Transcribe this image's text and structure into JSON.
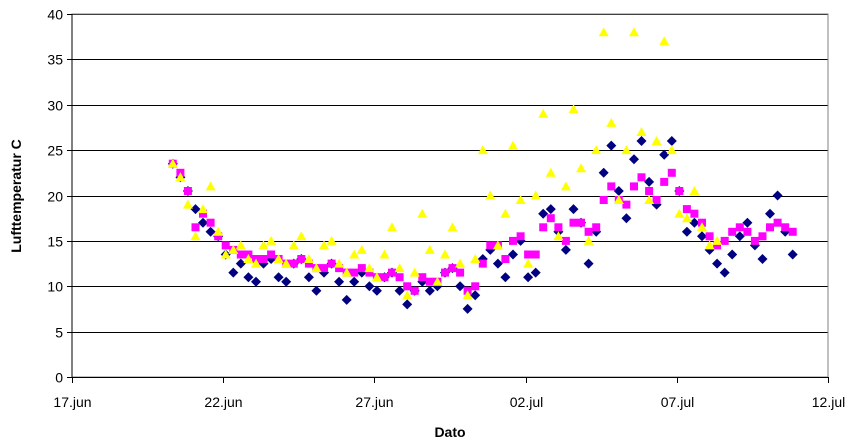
{
  "chart_data": {
    "type": "scatter",
    "title": "",
    "xlabel": "Dato",
    "ylabel": "Lufttemperatur C",
    "x_scale": "date",
    "xlim": [
      "2013-06-17",
      "2013-07-12"
    ],
    "ylim": [
      0,
      40
    ],
    "x_ticks": [
      {
        "date": "2013-06-17",
        "label": "17.jun"
      },
      {
        "date": "2013-06-22",
        "label": "22.jun"
      },
      {
        "date": "2013-06-27",
        "label": "27.jun"
      },
      {
        "date": "2013-07-02",
        "label": "02.jul"
      },
      {
        "date": "2013-07-07",
        "label": "07.jul"
      },
      {
        "date": "2013-07-12",
        "label": "12.jul"
      }
    ],
    "y_ticks": [
      "0",
      "5",
      "10",
      "15",
      "20",
      "25",
      "30",
      "35",
      "40"
    ],
    "grid": "horizontal",
    "legend": "none",
    "series": [
      {
        "color": "#000080",
        "marker": "diamond",
        "points": [
          [
            "2013-06-20 08:00",
            23.5
          ],
          [
            "2013-06-20 14:00",
            22.0
          ],
          [
            "2013-06-20 20:00",
            20.5
          ],
          [
            "2013-06-21 02:00",
            18.5
          ],
          [
            "2013-06-21 08:00",
            17.0
          ],
          [
            "2013-06-21 14:00",
            16.0
          ],
          [
            "2013-06-21 20:00",
            15.5
          ],
          [
            "2013-06-22 02:00",
            13.5
          ],
          [
            "2013-06-22 08:00",
            11.5
          ],
          [
            "2013-06-22 14:00",
            12.5
          ],
          [
            "2013-06-22 20:00",
            11.0
          ],
          [
            "2013-06-23 02:00",
            10.5
          ],
          [
            "2013-06-23 08:00",
            12.5
          ],
          [
            "2013-06-23 14:00",
            13.0
          ],
          [
            "2013-06-23 20:00",
            11.0
          ],
          [
            "2013-06-24 02:00",
            10.5
          ],
          [
            "2013-06-24 08:00",
            12.5
          ],
          [
            "2013-06-24 14:00",
            13.0
          ],
          [
            "2013-06-24 20:00",
            11.0
          ],
          [
            "2013-06-25 02:00",
            9.5
          ],
          [
            "2013-06-25 08:00",
            11.5
          ],
          [
            "2013-06-25 14:00",
            12.5
          ],
          [
            "2013-06-25 20:00",
            10.5
          ],
          [
            "2013-06-26 02:00",
            8.5
          ],
          [
            "2013-06-26 08:00",
            10.5
          ],
          [
            "2013-06-26 14:00",
            11.5
          ],
          [
            "2013-06-26 20:00",
            10.0
          ],
          [
            "2013-06-27 02:00",
            9.5
          ],
          [
            "2013-06-27 08:00",
            11.0
          ],
          [
            "2013-06-27 14:00",
            11.5
          ],
          [
            "2013-06-27 20:00",
            9.5
          ],
          [
            "2013-06-28 02:00",
            8.0
          ],
          [
            "2013-06-28 08:00",
            9.5
          ],
          [
            "2013-06-28 14:00",
            10.5
          ],
          [
            "2013-06-28 20:00",
            9.5
          ],
          [
            "2013-06-29 02:00",
            10.0
          ],
          [
            "2013-06-29 08:00",
            11.5
          ],
          [
            "2013-06-29 14:00",
            12.0
          ],
          [
            "2013-06-29 20:00",
            10.0
          ],
          [
            "2013-06-30 02:00",
            7.5
          ],
          [
            "2013-06-30 08:00",
            9.0
          ],
          [
            "2013-06-30 14:00",
            13.0
          ],
          [
            "2013-06-30 20:00",
            14.0
          ],
          [
            "2013-07-01 02:00",
            12.5
          ],
          [
            "2013-07-01 08:00",
            11.0
          ],
          [
            "2013-07-01 14:00",
            13.5
          ],
          [
            "2013-07-01 20:00",
            15.0
          ],
          [
            "2013-07-02 02:00",
            11.0
          ],
          [
            "2013-07-02 08:00",
            11.5
          ],
          [
            "2013-07-02 14:00",
            18.0
          ],
          [
            "2013-07-02 20:00",
            18.5
          ],
          [
            "2013-07-03 02:00",
            16.0
          ],
          [
            "2013-07-03 08:00",
            14.0
          ],
          [
            "2013-07-03 14:00",
            18.5
          ],
          [
            "2013-07-03 20:00",
            17.0
          ],
          [
            "2013-07-04 02:00",
            12.5
          ],
          [
            "2013-07-04 08:00",
            16.0
          ],
          [
            "2013-07-04 14:00",
            22.5
          ],
          [
            "2013-07-04 20:00",
            25.5
          ],
          [
            "2013-07-05 02:00",
            20.5
          ],
          [
            "2013-07-05 08:00",
            17.5
          ],
          [
            "2013-07-05 14:00",
            24.0
          ],
          [
            "2013-07-05 20:00",
            26.0
          ],
          [
            "2013-07-06 02:00",
            21.5
          ],
          [
            "2013-07-06 08:00",
            19.0
          ],
          [
            "2013-07-06 14:00",
            24.5
          ],
          [
            "2013-07-06 20:00",
            26.0
          ],
          [
            "2013-07-07 02:00",
            20.5
          ],
          [
            "2013-07-07 08:00",
            16.0
          ],
          [
            "2013-07-07 14:00",
            17.0
          ],
          [
            "2013-07-07 20:00",
            15.5
          ],
          [
            "2013-07-08 02:00",
            14.0
          ],
          [
            "2013-07-08 08:00",
            12.5
          ],
          [
            "2013-07-08 14:00",
            11.5
          ],
          [
            "2013-07-08 20:00",
            13.5
          ],
          [
            "2013-07-09 02:00",
            15.5
          ],
          [
            "2013-07-09 08:00",
            17.0
          ],
          [
            "2013-07-09 14:00",
            14.5
          ],
          [
            "2013-07-09 20:00",
            13.0
          ],
          [
            "2013-07-10 02:00",
            18.0
          ],
          [
            "2013-07-10 08:00",
            20.0
          ],
          [
            "2013-07-10 14:00",
            16.0
          ],
          [
            "2013-07-10 20:00",
            13.5
          ]
        ]
      },
      {
        "color": "#FF00FF",
        "marker": "square",
        "points": [
          [
            "2013-06-20 08:00",
            23.5
          ],
          [
            "2013-06-20 14:00",
            22.5
          ],
          [
            "2013-06-20 20:00",
            20.5
          ],
          [
            "2013-06-21 02:00",
            16.5
          ],
          [
            "2013-06-21 08:00",
            18.0
          ],
          [
            "2013-06-21 14:00",
            17.0
          ],
          [
            "2013-06-21 20:00",
            15.5
          ],
          [
            "2013-06-22 02:00",
            14.5
          ],
          [
            "2013-06-22 08:00",
            14.0
          ],
          [
            "2013-06-22 14:00",
            13.5
          ],
          [
            "2013-06-22 20:00",
            13.5
          ],
          [
            "2013-06-23 02:00",
            13.0
          ],
          [
            "2013-06-23 08:00",
            13.0
          ],
          [
            "2013-06-23 14:00",
            13.5
          ],
          [
            "2013-06-23 20:00",
            13.0
          ],
          [
            "2013-06-24 02:00",
            12.5
          ],
          [
            "2013-06-24 08:00",
            12.5
          ],
          [
            "2013-06-24 14:00",
            13.0
          ],
          [
            "2013-06-24 20:00",
            12.5
          ],
          [
            "2013-06-25 02:00",
            12.0
          ],
          [
            "2013-06-25 08:00",
            12.0
          ],
          [
            "2013-06-25 14:00",
            12.5
          ],
          [
            "2013-06-25 20:00",
            12.0
          ],
          [
            "2013-06-26 02:00",
            11.5
          ],
          [
            "2013-06-26 08:00",
            11.5
          ],
          [
            "2013-06-26 14:00",
            12.0
          ],
          [
            "2013-06-26 20:00",
            11.5
          ],
          [
            "2013-06-27 02:00",
            11.0
          ],
          [
            "2013-06-27 08:00",
            11.0
          ],
          [
            "2013-06-27 14:00",
            11.5
          ],
          [
            "2013-06-27 20:00",
            11.0
          ],
          [
            "2013-06-28 02:00",
            10.0
          ],
          [
            "2013-06-28 08:00",
            9.5
          ],
          [
            "2013-06-28 14:00",
            11.0
          ],
          [
            "2013-06-28 20:00",
            10.5
          ],
          [
            "2013-06-29 02:00",
            10.5
          ],
          [
            "2013-06-29 08:00",
            11.5
          ],
          [
            "2013-06-29 14:00",
            12.0
          ],
          [
            "2013-06-29 20:00",
            11.5
          ],
          [
            "2013-06-30 02:00",
            9.5
          ],
          [
            "2013-06-30 08:00",
            10.0
          ],
          [
            "2013-06-30 14:00",
            12.5
          ],
          [
            "2013-06-30 20:00",
            14.5
          ],
          [
            "2013-07-01 02:00",
            14.5
          ],
          [
            "2013-07-01 08:00",
            13.0
          ],
          [
            "2013-07-01 14:00",
            15.0
          ],
          [
            "2013-07-01 20:00",
            15.5
          ],
          [
            "2013-07-02 02:00",
            13.5
          ],
          [
            "2013-07-02 08:00",
            13.5
          ],
          [
            "2013-07-02 14:00",
            16.5
          ],
          [
            "2013-07-02 20:00",
            17.5
          ],
          [
            "2013-07-03 02:00",
            16.5
          ],
          [
            "2013-07-03 08:00",
            15.0
          ],
          [
            "2013-07-03 14:00",
            17.0
          ],
          [
            "2013-07-03 20:00",
            17.0
          ],
          [
            "2013-07-04 02:00",
            16.0
          ],
          [
            "2013-07-04 08:00",
            16.5
          ],
          [
            "2013-07-04 14:00",
            19.5
          ],
          [
            "2013-07-04 20:00",
            21.0
          ],
          [
            "2013-07-05 02:00",
            19.5
          ],
          [
            "2013-07-05 08:00",
            19.0
          ],
          [
            "2013-07-05 14:00",
            21.0
          ],
          [
            "2013-07-05 20:00",
            22.0
          ],
          [
            "2013-07-06 02:00",
            20.5
          ],
          [
            "2013-07-06 08:00",
            19.5
          ],
          [
            "2013-07-06 14:00",
            21.5
          ],
          [
            "2013-07-06 20:00",
            22.5
          ],
          [
            "2013-07-07 02:00",
            20.5
          ],
          [
            "2013-07-07 08:00",
            18.5
          ],
          [
            "2013-07-07 14:00",
            18.0
          ],
          [
            "2013-07-07 20:00",
            17.0
          ],
          [
            "2013-07-08 02:00",
            15.5
          ],
          [
            "2013-07-08 08:00",
            14.5
          ],
          [
            "2013-07-08 14:00",
            15.0
          ],
          [
            "2013-07-08 20:00",
            16.0
          ],
          [
            "2013-07-09 02:00",
            16.5
          ],
          [
            "2013-07-09 08:00",
            16.0
          ],
          [
            "2013-07-09 14:00",
            15.0
          ],
          [
            "2013-07-09 20:00",
            15.5
          ],
          [
            "2013-07-10 02:00",
            16.5
          ],
          [
            "2013-07-10 08:00",
            17.0
          ],
          [
            "2013-07-10 14:00",
            16.5
          ],
          [
            "2013-07-10 20:00",
            16.0
          ]
        ]
      },
      {
        "color": "#FFFF00",
        "marker": "triangle",
        "points": [
          [
            "2013-06-20 08:00",
            23.5
          ],
          [
            "2013-06-20 14:00",
            22.0
          ],
          [
            "2013-06-20 20:00",
            19.0
          ],
          [
            "2013-06-21 02:00",
            15.5
          ],
          [
            "2013-06-21 08:00",
            18.5
          ],
          [
            "2013-06-21 14:00",
            21.0
          ],
          [
            "2013-06-21 20:00",
            16.0
          ],
          [
            "2013-06-22 02:00",
            13.5
          ],
          [
            "2013-06-22 08:00",
            14.0
          ],
          [
            "2013-06-22 14:00",
            14.5
          ],
          [
            "2013-06-22 20:00",
            13.0
          ],
          [
            "2013-06-23 02:00",
            12.5
          ],
          [
            "2013-06-23 08:00",
            14.5
          ],
          [
            "2013-06-23 14:00",
            15.0
          ],
          [
            "2013-06-23 20:00",
            13.0
          ],
          [
            "2013-06-24 02:00",
            12.5
          ],
          [
            "2013-06-24 08:00",
            14.5
          ],
          [
            "2013-06-24 14:00",
            15.5
          ],
          [
            "2013-06-24 20:00",
            13.0
          ],
          [
            "2013-06-25 02:00",
            12.0
          ],
          [
            "2013-06-25 08:00",
            14.5
          ],
          [
            "2013-06-25 14:00",
            15.0
          ],
          [
            "2013-06-25 20:00",
            12.5
          ],
          [
            "2013-06-26 02:00",
            11.5
          ],
          [
            "2013-06-26 08:00",
            13.5
          ],
          [
            "2013-06-26 14:00",
            14.0
          ],
          [
            "2013-06-26 20:00",
            12.0
          ],
          [
            "2013-06-27 02:00",
            11.0
          ],
          [
            "2013-06-27 08:00",
            13.5
          ],
          [
            "2013-06-27 14:00",
            16.5
          ],
          [
            "2013-06-27 20:00",
            12.0
          ],
          [
            "2013-06-28 02:00",
            9.0
          ],
          [
            "2013-06-28 08:00",
            11.5
          ],
          [
            "2013-06-28 14:00",
            18.0
          ],
          [
            "2013-06-28 20:00",
            14.0
          ],
          [
            "2013-06-29 02:00",
            10.5
          ],
          [
            "2013-06-29 08:00",
            13.5
          ],
          [
            "2013-06-29 14:00",
            16.5
          ],
          [
            "2013-06-29 20:00",
            12.5
          ],
          [
            "2013-06-30 02:00",
            9.0
          ],
          [
            "2013-06-30 08:00",
            13.0
          ],
          [
            "2013-06-30 14:00",
            25.0
          ],
          [
            "2013-06-30 20:00",
            20.0
          ],
          [
            "2013-07-01 02:00",
            14.5
          ],
          [
            "2013-07-01 08:00",
            18.0
          ],
          [
            "2013-07-01 14:00",
            25.5
          ],
          [
            "2013-07-01 20:00",
            19.5
          ],
          [
            "2013-07-02 02:00",
            12.5
          ],
          [
            "2013-07-02 08:00",
            20.0
          ],
          [
            "2013-07-02 14:00",
            29.0
          ],
          [
            "2013-07-02 20:00",
            22.5
          ],
          [
            "2013-07-03 02:00",
            15.5
          ],
          [
            "2013-07-03 08:00",
            21.0
          ],
          [
            "2013-07-03 14:00",
            29.5
          ],
          [
            "2013-07-03 20:00",
            23.0
          ],
          [
            "2013-07-04 02:00",
            15.0
          ],
          [
            "2013-07-04 08:00",
            25.0
          ],
          [
            "2013-07-04 14:00",
            38.0
          ],
          [
            "2013-07-04 20:00",
            28.0
          ],
          [
            "2013-07-05 02:00",
            19.5
          ],
          [
            "2013-07-05 08:00",
            25.0
          ],
          [
            "2013-07-05 14:00",
            38.0
          ],
          [
            "2013-07-05 20:00",
            27.0
          ],
          [
            "2013-07-06 02:00",
            19.5
          ],
          [
            "2013-07-06 08:00",
            26.0
          ],
          [
            "2013-07-06 14:00",
            37.0
          ],
          [
            "2013-07-06 20:00",
            25.0
          ],
          [
            "2013-07-07 02:00",
            18.0
          ],
          [
            "2013-07-07 08:00",
            17.5
          ],
          [
            "2013-07-07 14:00",
            20.5
          ],
          [
            "2013-07-07 20:00",
            16.5
          ],
          [
            "2013-07-08 02:00",
            14.5
          ],
          [
            "2013-07-08 08:00",
            15.0
          ]
        ]
      }
    ]
  }
}
